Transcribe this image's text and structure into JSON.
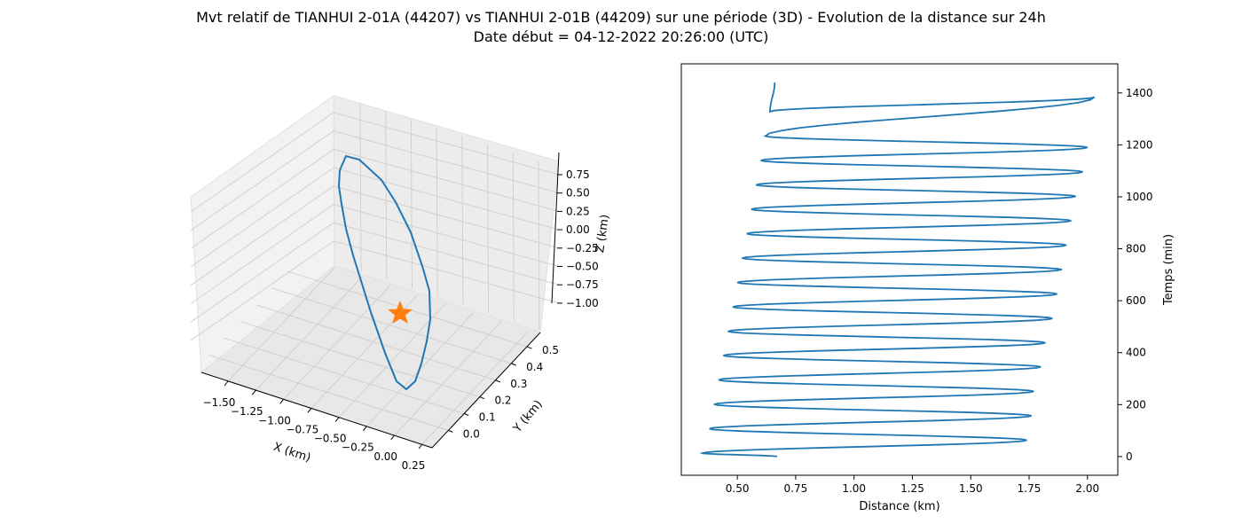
{
  "figure": {
    "title_line1": "Mvt relatif de TIANHUI 2-01A (44207) vs TIANHUI 2-01B (44209) sur une période (3D) - Evolution de la distance sur 24h",
    "title_line2": "Date début = 04-12-2022 20:26:00 (UTC)"
  },
  "colors": {
    "series": "#1f77b4",
    "marker": "#ff7f0e",
    "pane": "#f2f2f2",
    "grid": "#d0d0d0"
  },
  "chart_data": [
    {
      "type": "line",
      "projection": "3d",
      "xlabel": "X (km)",
      "ylabel": "Y (km)",
      "zlabel": "Z (km)",
      "x_ticks": [
        "−1.50",
        "−1.25",
        "−1.00",
        "−0.75",
        "−0.50",
        "−0.25",
        "0.00",
        "0.25"
      ],
      "y_ticks": [
        "0.0",
        "0.1",
        "0.2",
        "0.3",
        "0.4",
        "0.5"
      ],
      "z_ticks": [
        "0.75",
        "0.50",
        "0.25",
        "0.00",
        "−0.25",
        "−0.50",
        "−0.75",
        "−1.00"
      ],
      "grid": true,
      "marker": {
        "shape": "star",
        "x": -0.5,
        "y": 0.0,
        "z": 0.0
      }
    },
    {
      "type": "line",
      "xlabel": "Distance (km)",
      "ylabel": "Temps (min)",
      "ylabel_position": "right",
      "xlim": [
        0.26,
        2.13
      ],
      "ylim": [
        -72,
        1512
      ],
      "x_ticks": [
        "0.50",
        "0.75",
        "1.00",
        "1.25",
        "1.50",
        "1.75",
        "2.00"
      ],
      "y_ticks": [
        "0",
        "200",
        "400",
        "600",
        "800",
        "1000",
        "1200",
        "1400"
      ],
      "grid": false,
      "series": [
        {
          "x": [
            0.67,
            0.35,
            1.74,
            0.38,
            1.76,
            0.4,
            1.77,
            0.42,
            1.8,
            0.44,
            1.82,
            0.46,
            1.85,
            0.48,
            1.87,
            0.5,
            1.89,
            0.52,
            1.91,
            0.54,
            1.93,
            0.56,
            1.95,
            0.58,
            1.98,
            0.6,
            2.0,
            0.62,
            2.03,
            0.64,
            0.66
          ],
          "y": [
            0,
            13,
            63,
            107,
            157,
            201,
            251,
            295,
            345,
            389,
            438,
            482,
            532,
            576,
            626,
            670,
            720,
            764,
            814,
            858,
            908,
            952,
            1002,
            1046,
            1096,
            1140,
            1190,
            1234,
            1384,
            1328,
            1440
          ]
        }
      ]
    }
  ]
}
